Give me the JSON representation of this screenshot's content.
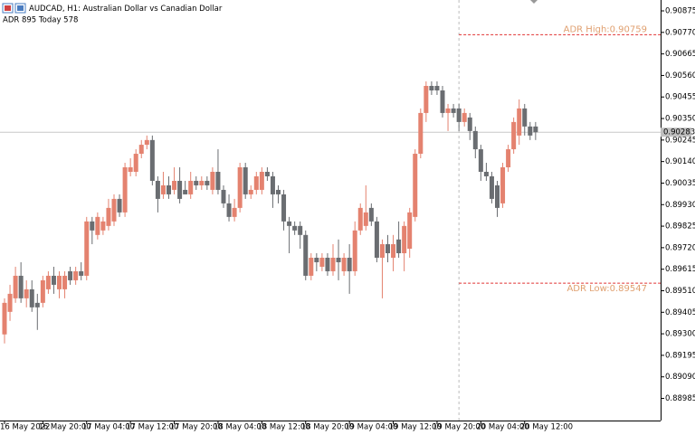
{
  "chart_data": {
    "type": "candlestick",
    "title": "AUDCAD, H1:  Australian Dollar vs Canadian  Dollar",
    "subtitle": "ADR 895  Today 578",
    "categories": [
      "16 May 2022",
      null,
      null,
      null,
      null,
      null,
      null,
      "16 May 20:00",
      null,
      null,
      null,
      null,
      null,
      null,
      null,
      "17 May 04:00",
      null,
      null,
      null,
      null,
      null,
      null,
      null,
      "17 May 12:00",
      null,
      null,
      null,
      null,
      null,
      null,
      null,
      "17 May 20:00",
      null,
      null,
      null,
      null,
      null,
      null,
      null,
      "18 May 04:00",
      null,
      null,
      null,
      null,
      null,
      null,
      null,
      "18 May 12:00",
      null,
      null,
      null,
      null,
      null,
      null,
      null,
      "18 May 20:00",
      null,
      null,
      null,
      null,
      null,
      null,
      null,
      "19 May 04:00",
      null,
      null,
      null,
      null,
      null,
      null,
      null,
      "19 May 12:00",
      null,
      null,
      null,
      null,
      null,
      null,
      null,
      "19 May 20:00",
      null,
      null,
      null,
      null,
      null,
      null,
      null,
      "20 May 04:00",
      null,
      null,
      null,
      null,
      null,
      null,
      null,
      "20 May 12:00",
      null,
      null
    ],
    "open": [
      0.89297,
      0.89407,
      0.89473,
      0.89583,
      0.89473,
      0.89517,
      0.89451,
      0.89451,
      0.89517,
      0.89583,
      0.89517,
      0.89517,
      0.89605,
      0.89561,
      0.89605,
      0.89583,
      0.89848,
      0.89782,
      0.89804,
      0.89826,
      0.89848,
      0.89958,
      0.89892,
      0.9009,
      0.9009,
      0.90178,
      0.90222,
      0.90245,
      0.90046,
      0.8998,
      0.90024,
      0.90002,
      0.90046,
      0.90002,
      0.8998,
      0.90046,
      0.90024,
      0.90046,
      0.90002,
      0.9009,
      0.90002,
      0.89936,
      0.8987,
      0.89914,
      0.90112,
      0.8998,
      0.90002,
      0.90002,
      0.9009,
      0.90068,
      0.90002,
      0.8998,
      0.89848,
      0.89826,
      0.89826,
      0.89782,
      0.89583,
      0.89671,
      0.89627,
      0.89671,
      0.89605,
      0.89671,
      0.89605,
      0.89671,
      0.89605,
      0.89804,
      0.89826,
      0.89914,
      0.89848,
      0.89671,
      0.89737,
      0.89671,
      0.8976,
      0.89693,
      0.89715,
      0.8987,
      0.90178,
      0.90377,
      0.90509,
      0.90509,
      0.90487,
      0.90377,
      0.90399,
      0.90399,
      0.90333,
      0.90355,
      0.90289,
      0.902,
      0.9009,
      0.90068,
      0.90024,
      0.89936,
      0.90112,
      0.902,
      0.90267,
      0.90399,
      0.90311,
      0.90311
    ],
    "high": [
      0.89473,
      0.89539,
      0.89627,
      0.89649,
      0.89561,
      0.89561,
      0.89495,
      0.89583,
      0.89605,
      0.89627,
      0.89605,
      0.89605,
      0.89627,
      0.89627,
      0.89649,
      0.8987,
      0.8987,
      0.89892,
      0.8987,
      0.89958,
      0.8998,
      0.8998,
      0.90134,
      0.90156,
      0.902,
      0.90245,
      0.90267,
      0.90267,
      0.90068,
      0.9009,
      0.90068,
      0.90112,
      0.90112,
      0.90046,
      0.9009,
      0.90068,
      0.90068,
      0.90068,
      0.90112,
      0.902,
      0.90024,
      0.8998,
      0.89958,
      0.90134,
      0.90134,
      0.90024,
      0.9009,
      0.90112,
      0.90112,
      0.9009,
      0.90024,
      0.90002,
      0.8987,
      0.89848,
      0.89848,
      0.89804,
      0.89693,
      0.89693,
      0.89693,
      0.89693,
      0.89737,
      0.8976,
      0.89693,
      0.89737,
      0.89848,
      0.89936,
      0.90024,
      0.89936,
      0.8987,
      0.8976,
      0.89782,
      0.89782,
      0.89848,
      0.89848,
      0.89914,
      0.902,
      0.90399,
      0.90531,
      0.90531,
      0.90531,
      0.90509,
      0.90421,
      0.90421,
      0.90421,
      0.90399,
      0.90377,
      0.90311,
      0.90222,
      0.90134,
      0.9009,
      0.90046,
      0.90134,
      0.90222,
      0.90355,
      0.90443,
      0.90421,
      0.90333,
      0.90333
    ],
    "low": [
      0.89253,
      0.89363,
      0.89451,
      0.89451,
      0.89429,
      0.89407,
      0.89319,
      0.89429,
      0.89495,
      0.89495,
      0.89473,
      0.89473,
      0.89539,
      0.89539,
      0.89561,
      0.89561,
      0.89737,
      0.8976,
      0.89782,
      0.89804,
      0.89826,
      0.8987,
      0.8987,
      0.90068,
      0.90068,
      0.90156,
      0.902,
      0.90024,
      0.89892,
      0.89958,
      0.89958,
      0.8998,
      0.89936,
      0.8998,
      0.89958,
      0.90002,
      0.90002,
      0.90002,
      0.8998,
      0.8998,
      0.89914,
      0.89848,
      0.89848,
      0.89892,
      0.89958,
      0.89958,
      0.8998,
      0.8998,
      0.90046,
      0.89914,
      0.89936,
      0.89804,
      0.89693,
      0.89782,
      0.89715,
      0.89561,
      0.89561,
      0.89605,
      0.89605,
      0.89583,
      0.89583,
      0.89561,
      0.89583,
      0.89495,
      0.89583,
      0.89782,
      0.89804,
      0.89826,
      0.89649,
      0.89473,
      0.89649,
      0.89605,
      0.89671,
      0.89605,
      0.89671,
      0.89848,
      0.90156,
      0.90333,
      0.90465,
      0.90465,
      0.90355,
      0.90289,
      0.90355,
      0.90289,
      0.90311,
      0.90245,
      0.90156,
      0.90046,
      0.90046,
      0.89936,
      0.8987,
      0.89914,
      0.9009,
      0.90178,
      0.90222,
      0.90267,
      0.90245,
      0.90245
    ],
    "close": [
      0.89451,
      0.89495,
      0.89583,
      0.89473,
      0.89517,
      0.89429,
      0.89429,
      0.89561,
      0.89583,
      0.89539,
      0.89583,
      0.89583,
      0.89561,
      0.89605,
      0.89583,
      0.89848,
      0.89804,
      0.8987,
      0.89848,
      0.89914,
      0.89958,
      0.89892,
      0.90112,
      0.90112,
      0.90178,
      0.90222,
      0.90245,
      0.90046,
      0.89958,
      0.90024,
      0.8998,
      0.90046,
      0.89958,
      0.8998,
      0.90046,
      0.90024,
      0.90046,
      0.90024,
      0.9009,
      0.90002,
      0.89936,
      0.8987,
      0.89914,
      0.90112,
      0.8998,
      0.90002,
      0.90068,
      0.9009,
      0.90068,
      0.8998,
      0.8998,
      0.89848,
      0.89826,
      0.89804,
      0.89782,
      0.89583,
      0.89671,
      0.89649,
      0.89671,
      0.89605,
      0.89671,
      0.89649,
      0.89671,
      0.89605,
      0.89804,
      0.89914,
      0.89892,
      0.89848,
      0.89671,
      0.89737,
      0.89693,
      0.89737,
      0.89693,
      0.89826,
      0.89892,
      0.90178,
      0.90377,
      0.90509,
      0.90487,
      0.90487,
      0.90377,
      0.90399,
      0.90377,
      0.90333,
      0.90377,
      0.90289,
      0.902,
      0.9009,
      0.90068,
      0.89958,
      0.89914,
      0.90112,
      0.902,
      0.90333,
      0.90399,
      0.90311,
      0.90267,
      0.90283
    ],
    "up_color": "#e4826f",
    "down_color": "#6a6d71",
    "ylim": [
      0.88877,
      0.90928
    ],
    "yticks": [
      0.90875,
      {
        "value": 0.9077,
        "label": "0.90770"
      },
      0.90665,
      {
        "value": 0.9056,
        "label": "0.90560"
      },
      0.90455,
      {
        "value": 0.9035,
        "label": "0.90350"
      },
      0.90245,
      {
        "value": 0.9014,
        "label": "0.90140"
      },
      0.90035,
      {
        "value": 0.8993,
        "label": "0.89930"
      },
      0.89825,
      {
        "value": 0.8972,
        "label": "0.89720"
      },
      0.89615,
      {
        "value": 0.8951,
        "label": "0.89510"
      },
      0.89405,
      {
        "value": 0.893,
        "label": "0.89300"
      },
      0.89195,
      {
        "value": 0.8909,
        "label": "0.89090"
      },
      0.88985
    ],
    "annotations": [
      {
        "label": "ADR High:0.90759",
        "value": 0.90759
      },
      {
        "label": "ADR Low:0.89547",
        "value": 0.89547
      }
    ],
    "annotation_color": "#e03030"
  }
}
